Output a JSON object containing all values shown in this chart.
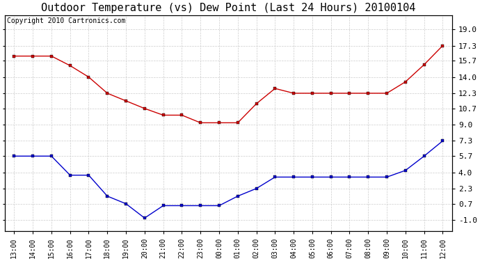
{
  "title": "Outdoor Temperature (vs) Dew Point (Last 24 Hours) 20100104",
  "copyright_text": "Copyright 2010 Cartronics.com",
  "x_labels": [
    "13:00",
    "14:00",
    "15:00",
    "16:00",
    "17:00",
    "18:00",
    "19:00",
    "20:00",
    "21:00",
    "22:00",
    "23:00",
    "00:00",
    "01:00",
    "02:00",
    "03:00",
    "04:00",
    "05:00",
    "06:00",
    "07:00",
    "08:00",
    "09:00",
    "10:00",
    "11:00",
    "12:00"
  ],
  "temp_values": [
    16.2,
    16.2,
    16.2,
    15.2,
    14.0,
    12.3,
    11.5,
    10.7,
    10.0,
    10.0,
    9.2,
    9.2,
    9.2,
    11.2,
    12.8,
    12.3,
    12.3,
    12.3,
    12.3,
    12.3,
    12.3,
    13.5,
    15.3,
    17.3
  ],
  "dew_values": [
    5.7,
    5.7,
    5.7,
    3.7,
    3.7,
    1.5,
    0.7,
    -0.8,
    0.5,
    0.5,
    0.5,
    0.5,
    1.5,
    2.3,
    3.5,
    3.5,
    3.5,
    3.5,
    3.5,
    3.5,
    3.5,
    4.2,
    5.7,
    7.3
  ],
  "temp_color": "#cc0000",
  "dew_color": "#0000cc",
  "grid_color": "#cccccc",
  "bg_color": "#ffffff",
  "yticks": [
    -1.0,
    0.7,
    2.3,
    4.0,
    5.7,
    7.3,
    9.0,
    10.7,
    12.3,
    14.0,
    15.7,
    17.3,
    19.0
  ],
  "ylim": [
    -2.2,
    20.5
  ],
  "title_fontsize": 11,
  "copyright_fontsize": 7
}
